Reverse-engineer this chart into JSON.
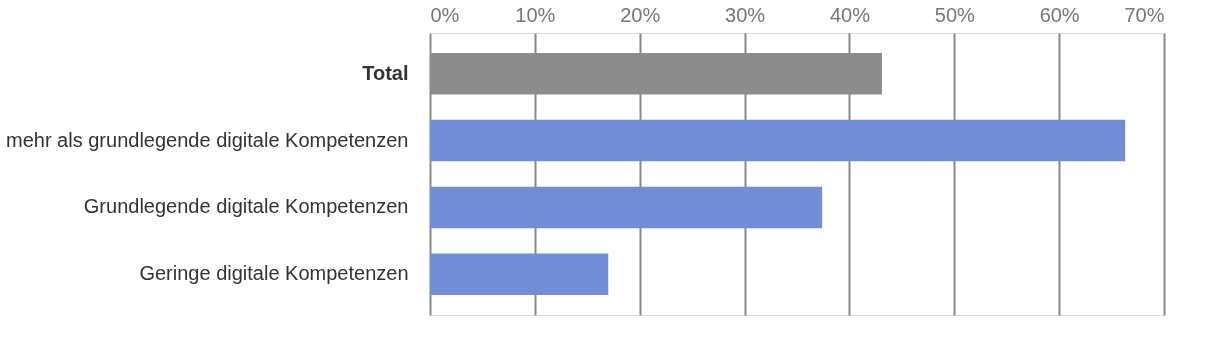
{
  "chart_data": {
    "type": "bar",
    "orientation": "horizontal",
    "categories": [
      "Total",
      "mehr als grundlegende digitale Kompetenzen",
      "Grundlegende digitale Kompetenzen",
      "Geringe digitale Kompetenzen"
    ],
    "values": [
      43.1,
      66.3,
      37.4,
      17.0
    ],
    "colors": [
      "#8c8c8c",
      "#728cd6",
      "#728cd6",
      "#728cd6"
    ],
    "xlim": [
      0,
      70
    ],
    "xticks": [
      {
        "value": 0,
        "label": "0%"
      },
      {
        "value": 10,
        "label": "10%"
      },
      {
        "value": 20,
        "label": "20%"
      },
      {
        "value": 30,
        "label": "30%"
      },
      {
        "value": 40,
        "label": "40%"
      },
      {
        "value": 50,
        "label": "50%"
      },
      {
        "value": 60,
        "label": "60%"
      },
      {
        "value": 70,
        "label": "70%"
      }
    ],
    "grid": "x",
    "legend": false
  }
}
